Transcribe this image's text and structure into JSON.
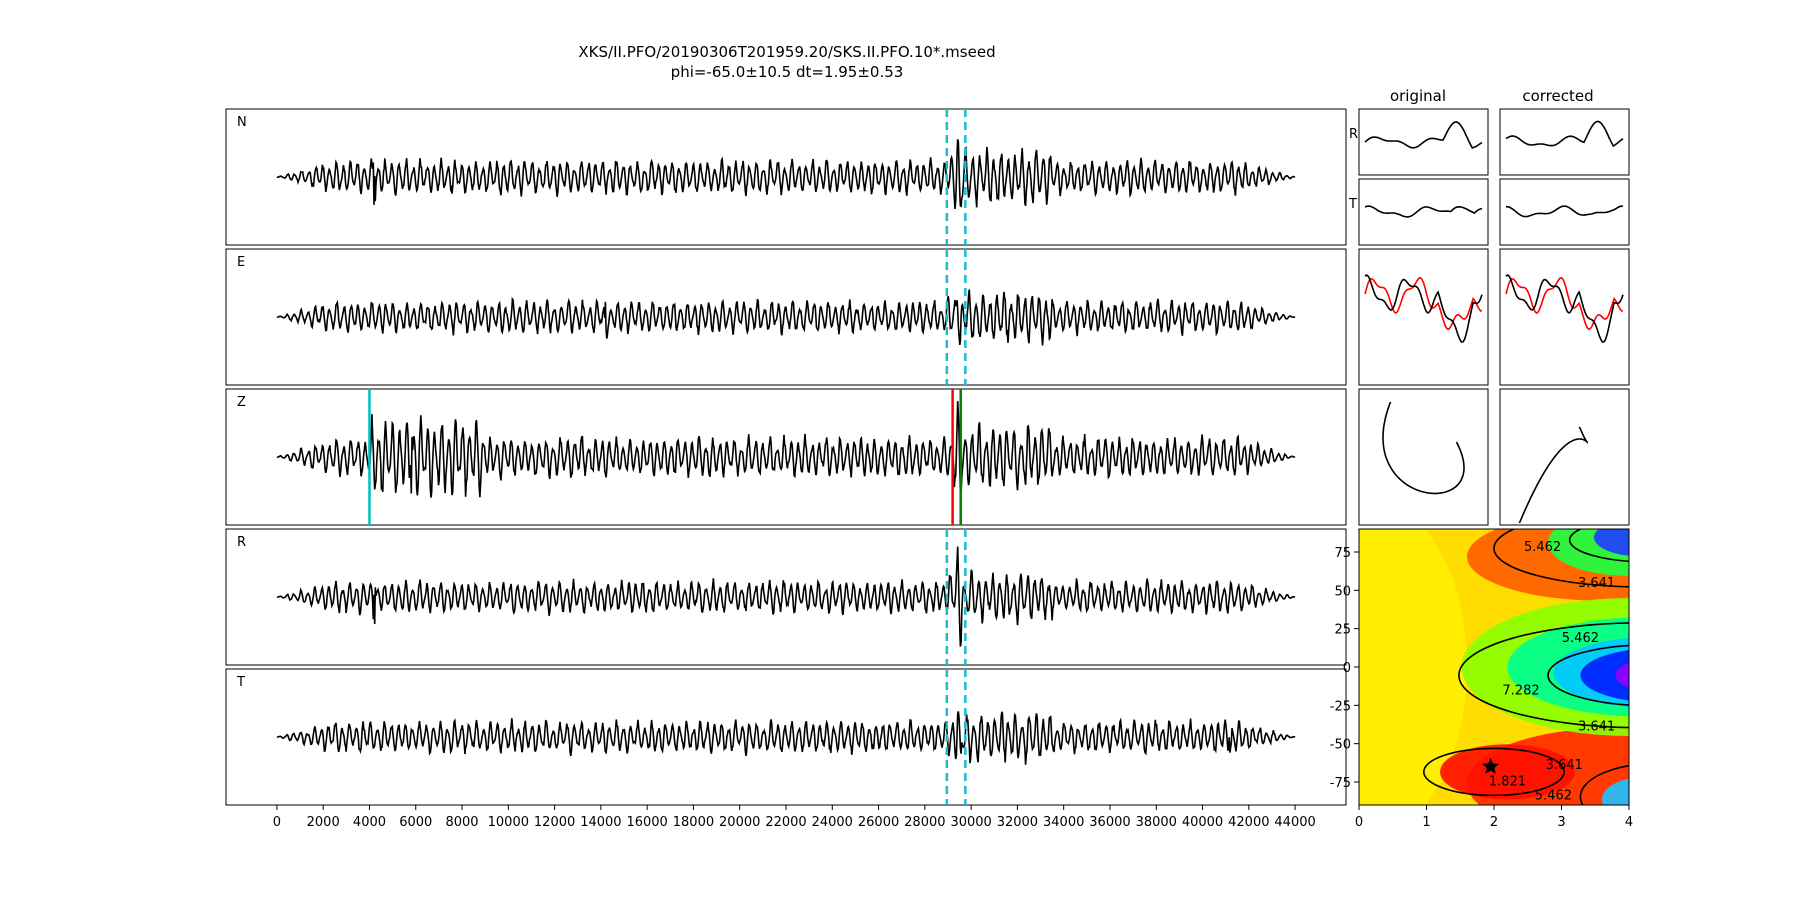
{
  "title_line1": "XKS/II.PFO/20190306T201959.20/SKS.II.PFO.10*.mseed",
  "title_line2": "phi=-65.0±10.5 dt=1.95±0.53",
  "chart_data": [
    {
      "type": "line",
      "id": "traces",
      "panels": [
        {
          "label": "N",
          "amp": 0.85,
          "spike_x": 4200,
          "spike_amp": 0.45
        },
        {
          "label": "E",
          "amp": 0.8,
          "spike_x": 14200,
          "spike_amp": 0.3
        },
        {
          "label": "Z",
          "amp": 1.0,
          "spike_x": 5800,
          "spike_amp": 0.6
        },
        {
          "label": "R",
          "amp": 0.8,
          "spike_x": 4200,
          "spike_amp": 0.4
        },
        {
          "label": "T",
          "amp": 0.8,
          "spike_x": 41200,
          "spike_amp": 0.35
        }
      ],
      "x_ticks": [
        0,
        2000,
        4000,
        6000,
        8000,
        10000,
        12000,
        14000,
        16000,
        18000,
        20000,
        22000,
        24000,
        26000,
        28000,
        30000,
        32000,
        34000,
        36000,
        38000,
        40000,
        42000,
        44000
      ],
      "xlim": [
        -2200,
        46200
      ],
      "signal_range": [
        0,
        44000
      ],
      "window_lines": [
        28950,
        29750
      ],
      "window_color": "#17becf",
      "z_marker_lines": [
        {
          "x": 4000,
          "color": "#00bfbf"
        },
        {
          "x": 29200,
          "color": "#ff0000"
        },
        {
          "x": 29550,
          "color": "#008000"
        }
      ]
    },
    {
      "type": "line",
      "id": "particle_panels",
      "columns": [
        "original",
        "corrected"
      ],
      "row_labels": [
        "R",
        "T"
      ]
    },
    {
      "type": "heatmap",
      "id": "error_surface",
      "xlim": [
        0,
        4
      ],
      "ylim": [
        -90,
        90
      ],
      "x_ticks": [
        0,
        1,
        2,
        3,
        4
      ],
      "y_ticks": [
        75,
        50,
        25,
        0,
        -25,
        -50,
        -75
      ],
      "best": {
        "dt": 1.95,
        "phi": -65.0
      },
      "contour_labels": [
        "5.462",
        "3.641",
        "5.462",
        "7.282",
        "3.641",
        "1.821",
        "3.641",
        "5.462"
      ]
    }
  ]
}
